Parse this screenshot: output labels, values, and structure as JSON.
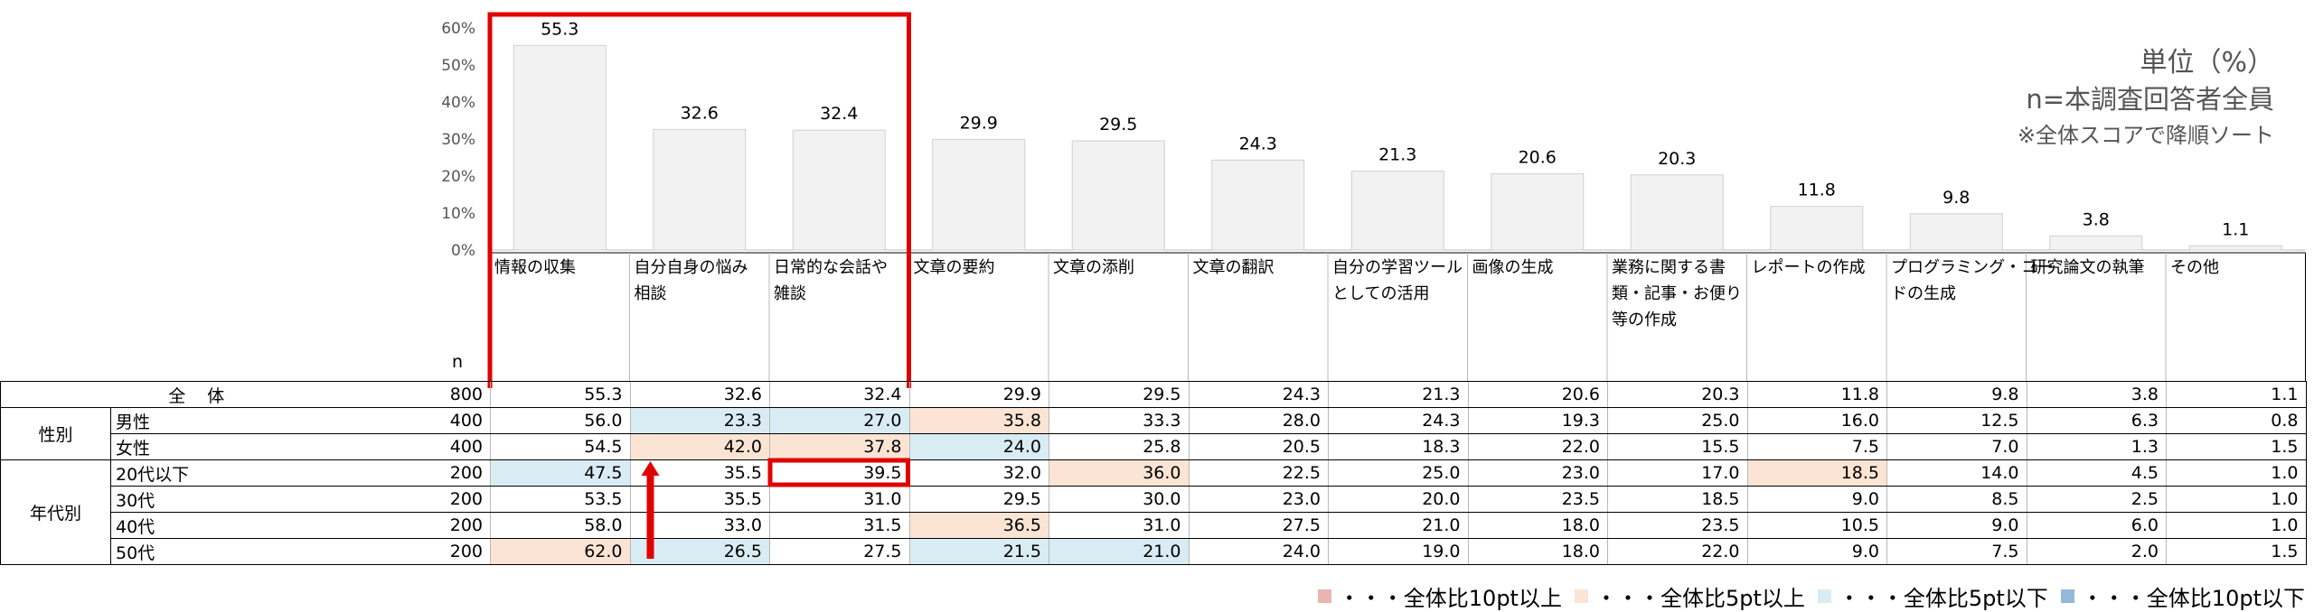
{
  "notes": {
    "unit": "単位（%）",
    "n_desc": "n=本調査回答者全員",
    "sort_note": "※全体スコアで降順ソート"
  },
  "n_header": "n",
  "colors": {
    "bar_fill": "#f2f2f2",
    "bar_stroke": "#d0d0d0",
    "highlight_red": "#e00000",
    "hi10": "#e8b4b4",
    "hi5": "#fbe4d4",
    "lo5": "#d9ecf3",
    "lo10": "#93b8da"
  },
  "chart_data": {
    "type": "bar",
    "categories": [
      "情報の収集",
      "自分自身の悩み相談",
      "日常的な会話や雑談",
      "文章の要約",
      "文章の添削",
      "文章の翻訳",
      "自分の学習ツールとしての活用",
      "画像の生成",
      "業務に関する書類・記事・お便り等の作成",
      "レポートの作成",
      "プログラミング・コードの生成",
      "研究論文の執筆",
      "その他"
    ],
    "category_lines": [
      [
        "情報の収集"
      ],
      [
        "自分自身の悩み",
        "相談"
      ],
      [
        "日常的な会話や",
        "雑談"
      ],
      [
        "文章の要約"
      ],
      [
        "文章の添削"
      ],
      [
        "文章の翻訳"
      ],
      [
        "自分の学習ツール",
        "としての活用"
      ],
      [
        "画像の生成"
      ],
      [
        "業務に関する書",
        "類・記事・お便り",
        "等の作成"
      ],
      [
        "レポートの作成"
      ],
      [
        "プログラミング・コー",
        "ドの生成"
      ],
      [
        "研究論文の執筆"
      ],
      [
        "その他"
      ]
    ],
    "values": [
      55.3,
      32.6,
      32.4,
      29.9,
      29.5,
      24.3,
      21.3,
      20.6,
      20.3,
      11.8,
      9.8,
      3.8,
      1.1
    ],
    "value_labels": [
      "55.3",
      "32.6",
      "32.4",
      "29.9",
      "29.5",
      "24.3",
      "21.3",
      "20.6",
      "20.3",
      "11.8",
      "9.8",
      "3.8",
      "1.1"
    ],
    "ylim": [
      0,
      60
    ],
    "yticks": [
      "0%",
      "10%",
      "20%",
      "30%",
      "40%",
      "50%",
      "60%"
    ],
    "grid": false,
    "highlight_categories": [
      0,
      1,
      2
    ]
  },
  "table": {
    "rows": [
      {
        "group": "全体",
        "sub": "",
        "n": "800",
        "values": [
          "55.3",
          "32.6",
          "32.4",
          "29.9",
          "29.5",
          "24.3",
          "21.3",
          "20.6",
          "20.3",
          "11.8",
          "9.8",
          "3.8",
          "1.1"
        ],
        "classes": [
          "",
          "",
          "",
          "",
          "",
          "",
          "",
          "",
          "",
          "",
          "",
          "",
          ""
        ]
      },
      {
        "group": "性別",
        "sub": "男性",
        "n": "400",
        "values": [
          "56.0",
          "23.3",
          "27.0",
          "35.8",
          "33.3",
          "28.0",
          "24.3",
          "19.3",
          "25.0",
          "16.0",
          "12.5",
          "6.3",
          "0.8"
        ],
        "classes": [
          "",
          "lo5",
          "lo5",
          "hi5",
          "",
          "",
          "",
          "",
          "",
          "",
          "",
          "",
          ""
        ]
      },
      {
        "group": "",
        "sub": "女性",
        "n": "400",
        "values": [
          "54.5",
          "42.0",
          "37.8",
          "24.0",
          "25.8",
          "20.5",
          "18.3",
          "22.0",
          "15.5",
          "7.5",
          "7.0",
          "1.3",
          "1.5"
        ],
        "classes": [
          "",
          "hi5",
          "hi5",
          "lo5",
          "",
          "",
          "",
          "",
          "",
          "",
          "",
          "",
          ""
        ]
      },
      {
        "group": "年代別",
        "sub": "20代以下",
        "n": "200",
        "values": [
          "47.5",
          "35.5",
          "39.5",
          "32.0",
          "36.0",
          "22.5",
          "25.0",
          "23.0",
          "17.0",
          "18.5",
          "14.0",
          "4.5",
          "1.0"
        ],
        "classes": [
          "lo5",
          "",
          "",
          "",
          "hi5",
          "",
          "",
          "",
          "",
          "hi5",
          "",
          "",
          ""
        ]
      },
      {
        "group": "",
        "sub": "30代",
        "n": "200",
        "values": [
          "53.5",
          "35.5",
          "31.0",
          "29.5",
          "30.0",
          "23.0",
          "20.0",
          "23.5",
          "18.5",
          "9.0",
          "8.5",
          "2.5",
          "1.0"
        ],
        "classes": [
          "",
          "",
          "",
          "",
          "",
          "",
          "",
          "",
          "",
          "",
          "",
          "",
          ""
        ]
      },
      {
        "group": "",
        "sub": "40代",
        "n": "200",
        "values": [
          "58.0",
          "33.0",
          "31.5",
          "36.5",
          "31.0",
          "27.5",
          "21.0",
          "18.0",
          "23.5",
          "10.5",
          "9.0",
          "6.0",
          "1.0"
        ],
        "classes": [
          "",
          "",
          "",
          "hi5",
          "",
          "",
          "",
          "",
          "",
          "",
          "",
          "",
          ""
        ]
      },
      {
        "group": "",
        "sub": "50代",
        "n": "200",
        "values": [
          "62.0",
          "26.5",
          "27.5",
          "21.5",
          "21.0",
          "24.0",
          "19.0",
          "18.0",
          "22.0",
          "9.0",
          "7.5",
          "2.0",
          "1.5"
        ],
        "classes": [
          "hi5",
          "lo5",
          "",
          "lo5",
          "lo5",
          "",
          "",
          "",
          "",
          "",
          "",
          "",
          ""
        ]
      }
    ]
  },
  "legend": {
    "items": [
      {
        "label": "・・・全体比10pt以上",
        "color": "#e8b4b4"
      },
      {
        "label": "・・・全体比5pt以上",
        "color": "#fbe4d4"
      },
      {
        "label": "・・・全体比5pt以下",
        "color": "#d9ecf3"
      },
      {
        "label": "・・・全体比10pt以下",
        "color": "#93b8da"
      }
    ]
  }
}
